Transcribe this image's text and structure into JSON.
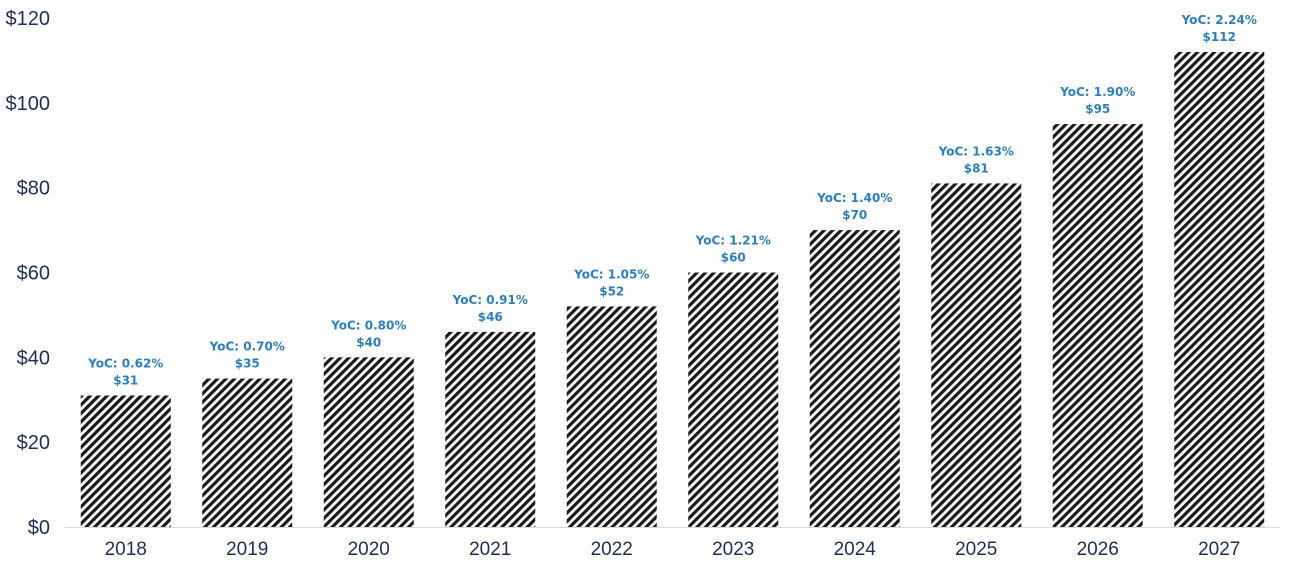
{
  "chart_data": {
    "type": "bar",
    "categories": [
      "2018",
      "2019",
      "2020",
      "2021",
      "2022",
      "2023",
      "2024",
      "2025",
      "2026",
      "2027"
    ],
    "values": [
      31,
      35,
      40,
      46,
      52,
      60,
      70,
      81,
      95,
      112
    ],
    "value_labels": [
      "$31",
      "$35",
      "$40",
      "$46",
      "$52",
      "$60",
      "$70",
      "$81",
      "$95",
      "$112"
    ],
    "yoc_labels": [
      "YoC: 0.62%",
      "YoC: 0.70%",
      "YoC: 0.80%",
      "YoC: 0.91%",
      "YoC: 1.05%",
      "YoC: 1.21%",
      "YoC: 1.40%",
      "YoC: 1.63%",
      "YoC: 1.90%",
      "YoC: 2.24%"
    ],
    "y_ticks": [
      "$0",
      "$20",
      "$40",
      "$60",
      "$80",
      "$100",
      "$120"
    ],
    "ylim": [
      0,
      120
    ],
    "title": "",
    "xlabel": "",
    "ylabel": "",
    "grid": false,
    "legend": "none",
    "colors": {
      "bar_hatch": "#1a1a1a",
      "label": "#2b7fc2",
      "axis_text": "#1f2d5a",
      "axis_line": "#d9d9d9"
    }
  }
}
